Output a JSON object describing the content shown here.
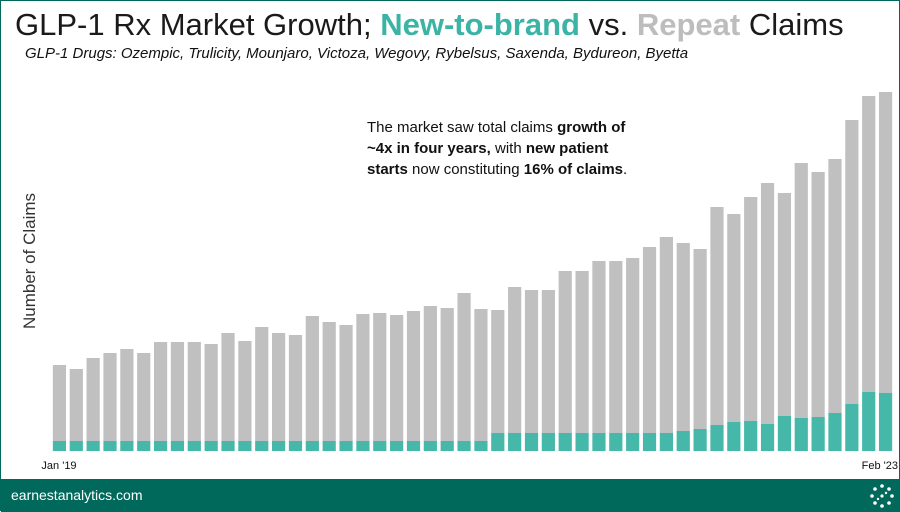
{
  "chart_data": {
    "type": "stacked_bar",
    "title": {
      "prefix": "GLP-1 Rx Market Growth;",
      "middle": "vs.",
      "suffix": "Claims"
    },
    "subtitle": "GLP-1 Drugs: Ozempic, Trulicity, Mounjaro, Victoza, Wegovy, Rybelsus, Saxenda, Bydureon, Byetta",
    "y_label": "Number of Claims",
    "annotation": [
      [
        {
          "text": "The market saw total claims",
          "bold": false
        },
        {
          "text": "growth of",
          "bold": true
        }
      ],
      [
        {
          "text": "~4x in four years,",
          "bold": true
        },
        {
          "text": "with",
          "bold": false
        },
        {
          "text": "new patient",
          "bold": true
        }
      ],
      [
        {
          "text": "starts",
          "bold": true
        },
        {
          "text": "now constituting",
          "bold": false
        },
        {
          "text": "16% of claims",
          "bold": true
        },
        {
          "text": ".",
          "bold": false
        }
      ]
    ],
    "categories": [
      "Jan '19",
      null,
      null,
      null,
      null,
      null,
      null,
      null,
      null,
      null,
      null,
      null,
      null,
      null,
      null,
      null,
      null,
      null,
      null,
      null,
      null,
      null,
      null,
      null,
      null,
      null,
      null,
      null,
      null,
      null,
      null,
      null,
      null,
      null,
      null,
      null,
      null,
      null,
      null,
      null,
      null,
      null,
      null,
      null,
      null,
      null,
      null,
      null,
      null,
      "Feb '23"
    ],
    "series": [
      {
        "name": "New-to-brand",
        "color": "#45b8aa",
        "title_color": "#3bb3a5",
        "values": [
          10,
          10,
          10,
          10,
          10,
          10,
          10,
          10,
          10,
          10,
          10,
          10,
          10,
          10,
          10,
          10,
          10,
          10,
          10,
          10,
          10,
          10,
          10,
          10,
          10,
          10,
          18,
          18,
          18,
          18,
          18,
          18,
          18,
          18,
          18,
          18,
          18,
          20,
          22,
          26,
          29,
          30,
          27,
          35,
          33,
          34,
          38,
          47,
          59,
          58
        ]
      },
      {
        "name": "Repeat",
        "color": "#c0c0c0",
        "title_color": "#bdbdbd",
        "values": [
          76,
          72,
          83,
          88,
          92,
          88,
          99,
          99,
          99,
          97,
          108,
          100,
          114,
          108,
          106,
          125,
          119,
          116,
          127,
          128,
          126,
          130,
          135,
          133,
          148,
          132,
          123,
          146,
          143,
          143,
          162,
          162,
          172,
          172,
          175,
          186,
          196,
          188,
          180,
          218,
          208,
          224,
          241,
          223,
          255,
          245,
          254,
          284,
          296,
          301
        ]
      }
    ],
    "ylim": [
      0,
      360
    ],
    "footer": "earnestanalytics.com"
  }
}
